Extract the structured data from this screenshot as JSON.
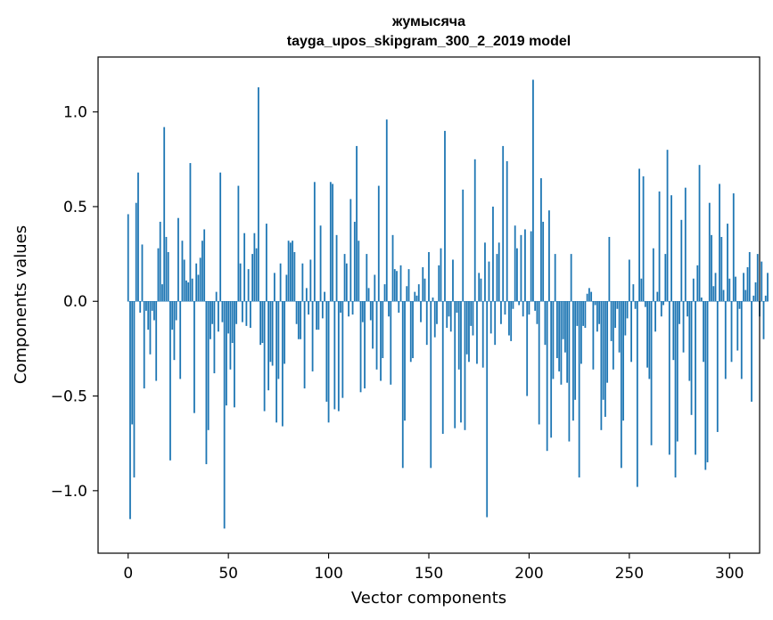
{
  "chart_data": {
    "type": "bar",
    "title": "жумысяча",
    "subtitle": "tayga_upos_skipgram_300_2_2019 model",
    "xlabel": "Vector components",
    "ylabel": "Components values",
    "xlim": [
      -15,
      315
    ],
    "ylim": [
      -1.33,
      1.29
    ],
    "xticks": [
      0,
      50,
      100,
      150,
      200,
      250,
      300
    ],
    "xtick_labels": [
      "0",
      "50",
      "100",
      "150",
      "200",
      "250",
      "300"
    ],
    "yticks": [
      -1.0,
      -0.5,
      0.0,
      0.5,
      1.0
    ],
    "ytick_labels": [
      "−1.0",
      "−0.5",
      "0.0",
      "0.5",
      "1.0"
    ],
    "grid": false,
    "bar_color": "#1f77b4",
    "values": [
      0.46,
      -1.15,
      -0.65,
      -0.93,
      0.52,
      0.68,
      -0.06,
      0.3,
      -0.46,
      -0.05,
      -0.15,
      -0.28,
      -0.05,
      -0.1,
      -0.42,
      0.28,
      0.42,
      0.09,
      0.92,
      0.34,
      0.26,
      -0.84,
      -0.15,
      -0.31,
      -0.1,
      0.44,
      -0.41,
      0.32,
      0.22,
      0.11,
      0.1,
      0.73,
      0.12,
      -0.59,
      0.2,
      0.14,
      0.23,
      0.32,
      0.38,
      -0.86,
      -0.68,
      -0.2,
      -0.12,
      -0.38,
      0.05,
      -0.16,
      0.68,
      -0.11,
      -1.2,
      -0.55,
      -0.17,
      -0.36,
      -0.22,
      -0.56,
      -0.12,
      0.61,
      0.2,
      -0.11,
      0.36,
      -0.13,
      0.17,
      -0.14,
      0.25,
      0.36,
      0.28,
      1.13,
      -0.23,
      -0.22,
      -0.58,
      0.41,
      -0.47,
      -0.32,
      -0.34,
      0.15,
      -0.64,
      -0.41,
      0.2,
      -0.66,
      -0.33,
      0.14,
      0.32,
      0.31,
      0.32,
      0.26,
      -0.12,
      -0.2,
      -0.2,
      0.2,
      -0.46,
      0.07,
      -0.07,
      0.22,
      -0.37,
      0.63,
      -0.15,
      -0.15,
      0.4,
      -0.09,
      0.05,
      -0.53,
      -0.64,
      0.63,
      0.62,
      -0.57,
      0.35,
      -0.58,
      -0.06,
      -0.51,
      0.25,
      0.2,
      -0.08,
      0.54,
      -0.07,
      0.42,
      0.82,
      0.32,
      -0.48,
      -0.11,
      -0.46,
      0.25,
      0.07,
      -0.1,
      -0.25,
      0.14,
      -0.36,
      0.61,
      -0.42,
      -0.3,
      0.09,
      0.96,
      -0.08,
      -0.44,
      0.35,
      0.17,
      0.16,
      -0.06,
      0.19,
      -0.88,
      -0.63,
      0.08,
      0.17,
      -0.32,
      -0.3,
      0.05,
      0.03,
      0.09,
      -0.11,
      0.18,
      0.12,
      -0.23,
      0.26,
      -0.88,
      0.02,
      -0.19,
      -0.12,
      0.19,
      0.28,
      -0.7,
      0.9,
      -0.14,
      -0.08,
      -0.16,
      0.22,
      -0.67,
      -0.06,
      -0.36,
      -0.64,
      0.59,
      -0.68,
      -0.28,
      -0.32,
      -0.13,
      -0.18,
      0.75,
      -0.33,
      0.15,
      0.12,
      -0.35,
      0.31,
      -1.14,
      0.21,
      -0.17,
      0.5,
      -0.23,
      0.25,
      0.31,
      -0.12,
      0.82,
      -0.07,
      0.74,
      -0.18,
      -0.21,
      -0.04,
      0.4,
      0.28,
      -0.02,
      0.35,
      -0.08,
      0.38,
      -0.5,
      -0.07,
      0.37,
      1.17,
      -0.05,
      -0.12,
      -0.65,
      0.65,
      0.42,
      -0.23,
      -0.79,
      0.48,
      -0.72,
      -0.41,
      0.25,
      -0.3,
      -0.37,
      -0.44,
      -0.2,
      -0.27,
      -0.43,
      -0.74,
      0.25,
      -0.63,
      -0.52,
      -0.13,
      -0.93,
      -0.33,
      -0.13,
      -0.14,
      0.04,
      0.07,
      0.05,
      -0.36,
      -0.02,
      -0.16,
      -0.12,
      -0.68,
      -0.52,
      -0.61,
      -0.43,
      0.34,
      -0.21,
      -0.36,
      -0.14,
      -0.04,
      -0.27,
      -0.88,
      -0.63,
      -0.18,
      -0.09,
      0.22,
      -0.32,
      0.09,
      -0.04,
      -0.98,
      0.7,
      0.12,
      0.66,
      -0.03,
      -0.35,
      -0.41,
      -0.76,
      0.28,
      -0.16,
      0.05,
      0.58,
      -0.08,
      -0.02,
      0.25,
      0.8,
      -0.81,
      0.56,
      -0.31,
      -0.93,
      -0.74,
      -0.12,
      0.43,
      -0.27,
      0.6,
      -0.08,
      -0.42,
      -0.6,
      0.12,
      -0.81,
      0.19,
      0.72,
      0.02,
      -0.32,
      -0.89,
      -0.85,
      0.52,
      0.35,
      0.08,
      0.15,
      -0.69,
      0.62,
      0.34,
      0.06,
      -0.41,
      0.41,
      0.12,
      -0.32,
      0.57,
      0.13,
      -0.26,
      -0.04,
      -0.41,
      0.15,
      0.06,
      0.18,
      0.26,
      -0.53,
      0.03,
      0.1,
      0.25,
      -0.08,
      0.21,
      -0.2,
      0.03,
      0.15
    ]
  }
}
